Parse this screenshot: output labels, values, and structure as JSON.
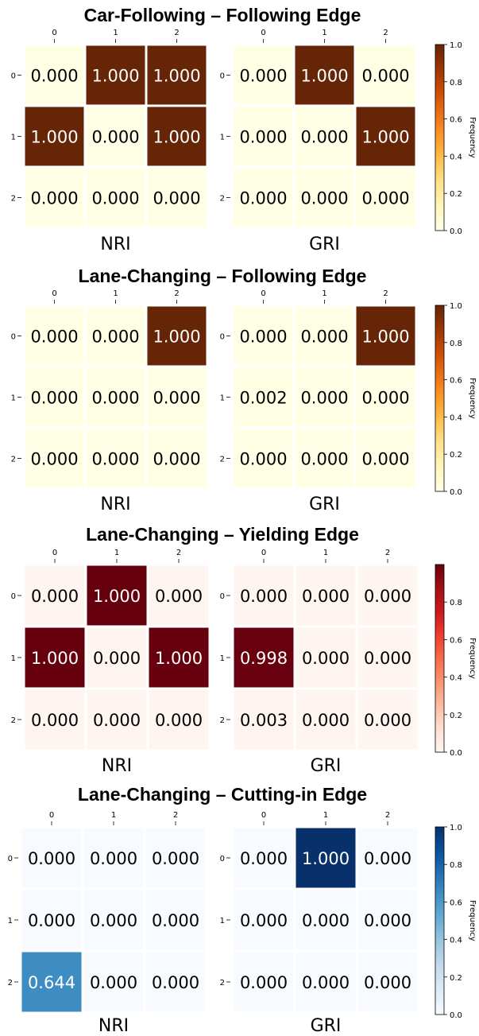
{
  "chart_data": [
    {
      "type": "heatmap",
      "title": "Car-Following – Following Edge",
      "colormap": "YlOrBr",
      "colorbar": {
        "label": "Frequency",
        "ticks": [
          "0.0",
          "0.2",
          "0.4",
          "0.6",
          "0.8",
          "1.0"
        ],
        "range": [
          0,
          1
        ]
      },
      "x_ticks": [
        "0",
        "1",
        "2"
      ],
      "y_ticks": [
        "0",
        "1",
        "2"
      ],
      "subplots": [
        {
          "label": "NRI",
          "values": [
            [
              0.0,
              1.0,
              1.0
            ],
            [
              1.0,
              0.0,
              1.0
            ],
            [
              0.0,
              0.0,
              0.0
            ]
          ],
          "text": [
            [
              "0.000",
              "1.000",
              "1.000"
            ],
            [
              "1.000",
              "0.000",
              "1.000"
            ],
            [
              "0.000",
              "0.000",
              "0.000"
            ]
          ]
        },
        {
          "label": "GRI",
          "values": [
            [
              0.0,
              1.0,
              0.0
            ],
            [
              0.0,
              0.0,
              1.0
            ],
            [
              0.0,
              0.0,
              0.0
            ]
          ],
          "text": [
            [
              "0.000",
              "1.000",
              "0.000"
            ],
            [
              "0.000",
              "0.000",
              "1.000"
            ],
            [
              "0.000",
              "0.000",
              "0.000"
            ]
          ]
        }
      ]
    },
    {
      "type": "heatmap",
      "title": "Lane-Changing – Following Edge",
      "colormap": "YlOrBr",
      "colorbar": {
        "label": "Frequency",
        "ticks": [
          "0.0",
          "0.2",
          "0.4",
          "0.6",
          "0.8",
          "1.0"
        ],
        "range": [
          0,
          1
        ]
      },
      "x_ticks": [
        "0",
        "1",
        "2"
      ],
      "y_ticks": [
        "0",
        "1",
        "2"
      ],
      "subplots": [
        {
          "label": "NRI",
          "values": [
            [
              0.0,
              0.0,
              1.0
            ],
            [
              0.0,
              0.0,
              0.0
            ],
            [
              0.0,
              0.0,
              0.0
            ]
          ],
          "text": [
            [
              "0.000",
              "0.000",
              "1.000"
            ],
            [
              "0.000",
              "0.000",
              "0.000"
            ],
            [
              "0.000",
              "0.000",
              "0.000"
            ]
          ]
        },
        {
          "label": "GRI",
          "values": [
            [
              0.0,
              0.0,
              1.0
            ],
            [
              0.002,
              0.0,
              0.0
            ],
            [
              0.0,
              0.0,
              0.0
            ]
          ],
          "text": [
            [
              "0.000",
              "0.000",
              "1.000"
            ],
            [
              "0.002",
              "0.000",
              "0.000"
            ],
            [
              "0.000",
              "0.000",
              "0.000"
            ]
          ]
        }
      ]
    },
    {
      "type": "heatmap",
      "title": "Lane-Changing – Yielding Edge",
      "colormap": "Reds",
      "colorbar": {
        "label": "Frequency",
        "ticks": [
          "0.0",
          "0.2",
          "0.4",
          "0.6",
          "0.8"
        ],
        "range": [
          0,
          1
        ]
      },
      "x_ticks": [
        "0",
        "1",
        "2"
      ],
      "y_ticks": [
        "0",
        "1",
        "2"
      ],
      "subplots": [
        {
          "label": "NRI",
          "values": [
            [
              0.0,
              1.0,
              0.0
            ],
            [
              1.0,
              0.0,
              1.0
            ],
            [
              0.0,
              0.0,
              0.0
            ]
          ],
          "text": [
            [
              "0.000",
              "1.000",
              "0.000"
            ],
            [
              "1.000",
              "0.000",
              "1.000"
            ],
            [
              "0.000",
              "0.000",
              "0.000"
            ]
          ]
        },
        {
          "label": "GRI",
          "values": [
            [
              0.0,
              0.0,
              0.0
            ],
            [
              0.998,
              0.0,
              0.0
            ],
            [
              0.003,
              0.0,
              0.0
            ]
          ],
          "text": [
            [
              "0.000",
              "0.000",
              "0.000"
            ],
            [
              "0.998",
              "0.000",
              "0.000"
            ],
            [
              "0.003",
              "0.000",
              "0.000"
            ]
          ]
        }
      ]
    },
    {
      "type": "heatmap",
      "title": "Lane-Changing – Cutting-in Edge",
      "colormap": "Blues",
      "colorbar": {
        "label": "Frequency",
        "ticks": [
          "0.0",
          "0.2",
          "0.4",
          "0.6",
          "0.8",
          "1.0"
        ],
        "range": [
          0,
          1
        ]
      },
      "x_ticks": [
        "0",
        "1",
        "2"
      ],
      "y_ticks": [
        "0",
        "1",
        "2"
      ],
      "subplots": [
        {
          "label": "NRI",
          "values": [
            [
              0.0,
              0.0,
              0.0
            ],
            [
              0.0,
              0.0,
              0.0
            ],
            [
              0.644,
              0.0,
              0.0
            ]
          ],
          "text": [
            [
              "0.000",
              "0.000",
              "0.000"
            ],
            [
              "0.000",
              "0.000",
              "0.000"
            ],
            [
              "0.644",
              "0.000",
              "0.000"
            ]
          ]
        },
        {
          "label": "GRI",
          "values": [
            [
              0.0,
              1.0,
              0.0
            ],
            [
              0.0,
              0.0,
              0.0
            ],
            [
              0.0,
              0.0,
              0.0
            ]
          ],
          "text": [
            [
              "0.000",
              "1.000",
              "0.000"
            ],
            [
              "0.000",
              "0.000",
              "0.000"
            ],
            [
              "0.000",
              "0.000",
              "0.000"
            ]
          ]
        }
      ]
    }
  ]
}
